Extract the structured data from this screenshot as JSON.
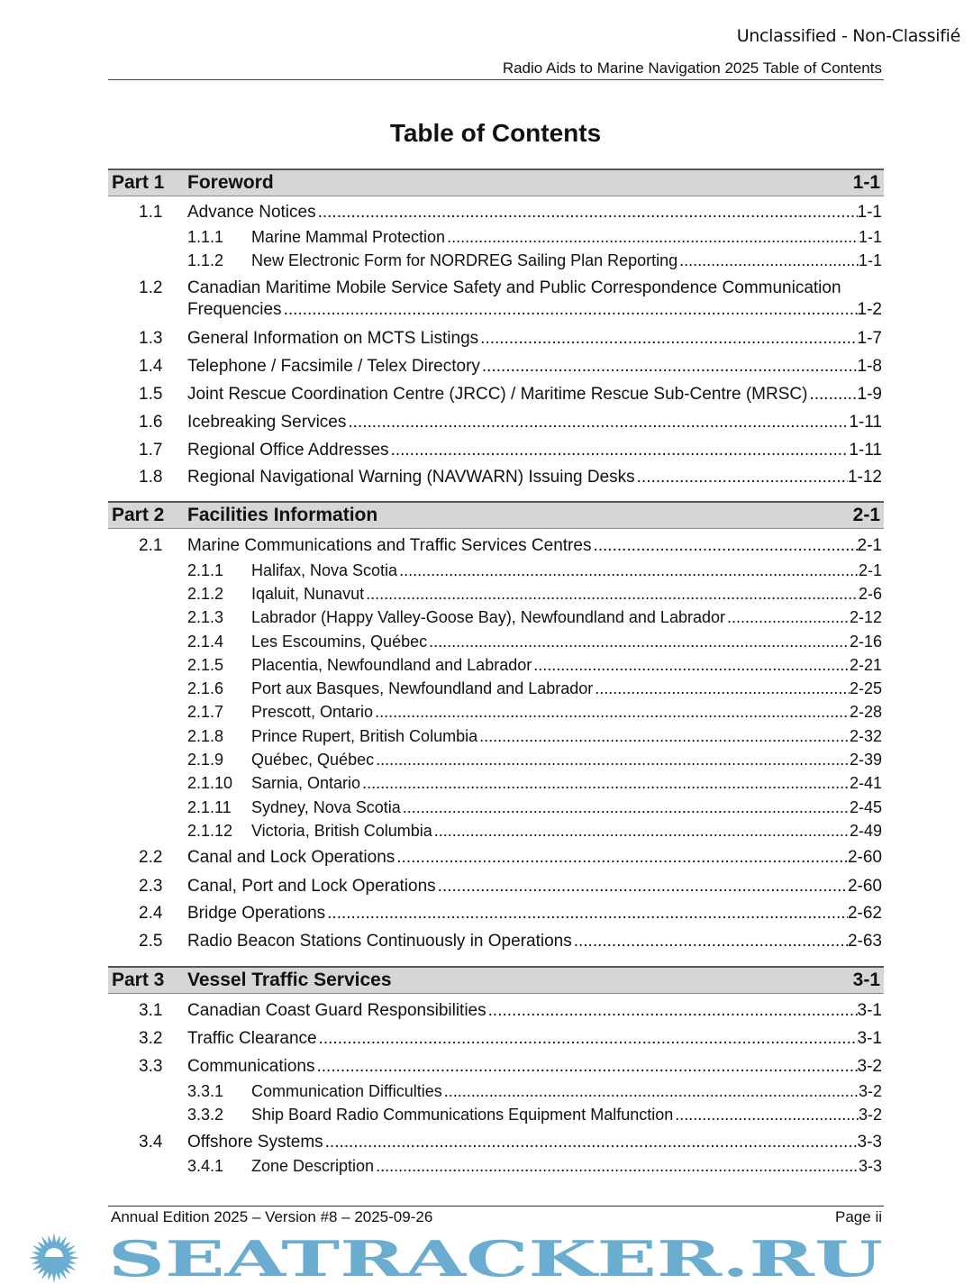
{
  "header": {
    "classification": "Unclassified - Non-Classifié",
    "running_title": "Radio Aids to Marine Navigation 2025 Table of Contents"
  },
  "title": "Table of Contents",
  "parts": [
    {
      "label": "Part 1",
      "title": "Foreword",
      "page": "1-1",
      "entries": [
        {
          "num": "1.1",
          "title": "Advance Notices",
          "page": "1-1",
          "level": 1
        },
        {
          "num": "1.1.1",
          "title": "Marine Mammal Protection",
          "page": "1-1",
          "level": 2
        },
        {
          "num": "1.1.2",
          "title": "New Electronic Form for NORDREG Sailing Plan Reporting",
          "page": "1-1",
          "level": 2
        },
        {
          "num": "1.2",
          "title": "Canadian Maritime Mobile Service Safety and Public Correspondence Communication",
          "title_cont": "Frequencies",
          "page": "1-2",
          "level": 1
        },
        {
          "num": "1.3",
          "title": "General Information on MCTS Listings",
          "page": "1-7",
          "level": 1
        },
        {
          "num": "1.4",
          "title": "Telephone / Facsimile / Telex Directory",
          "page": "1-8",
          "level": 1
        },
        {
          "num": "1.5",
          "title": "Joint Rescue Coordination Centre (JRCC) / Maritime Rescue Sub-Centre (MRSC)",
          "page": "1-9",
          "level": 1
        },
        {
          "num": "1.6",
          "title": "Icebreaking Services",
          "page": "1-11",
          "level": 1
        },
        {
          "num": "1.7",
          "title": "Regional Office Addresses",
          "page": "1-11",
          "level": 1
        },
        {
          "num": "1.8",
          "title": "Regional Navigational Warning (NAVWARN) Issuing Desks",
          "page": "1-12",
          "level": 1
        }
      ]
    },
    {
      "label": "Part 2",
      "title": "Facilities Information",
      "page": "2-1",
      "entries": [
        {
          "num": "2.1",
          "title": "Marine Communications and Traffic Services Centres",
          "page": "2-1",
          "level": 1
        },
        {
          "num": "2.1.1",
          "title": "Halifax, Nova Scotia",
          "page": "2-1",
          "level": 2
        },
        {
          "num": "2.1.2",
          "title": "Iqaluit, Nunavut",
          "page": "2-6",
          "level": 2
        },
        {
          "num": "2.1.3",
          "title": "Labrador (Happy Valley-Goose Bay), Newfoundland and Labrador",
          "page": "2-12",
          "level": 2
        },
        {
          "num": "2.1.4",
          "title": "Les Escoumins, Québec",
          "page": "2-16",
          "level": 2
        },
        {
          "num": "2.1.5",
          "title": "Placentia, Newfoundland and Labrador",
          "page": "2-21",
          "level": 2
        },
        {
          "num": "2.1.6",
          "title": "Port aux Basques, Newfoundland and Labrador",
          "page": "2-25",
          "level": 2
        },
        {
          "num": "2.1.7",
          "title": "Prescott, Ontario",
          "page": "2-28",
          "level": 2
        },
        {
          "num": "2.1.8",
          "title": "Prince Rupert, British Columbia",
          "page": "2-32",
          "level": 2
        },
        {
          "num": "2.1.9",
          "title": "Québec, Québec",
          "page": "2-39",
          "level": 2
        },
        {
          "num": "2.1.10",
          "title": "Sarnia, Ontario",
          "page": "2-41",
          "level": 2
        },
        {
          "num": "2.1.11",
          "title": "Sydney, Nova Scotia",
          "page": "2-45",
          "level": 2
        },
        {
          "num": "2.1.12",
          "title": "Victoria, British Columbia",
          "page": "2-49",
          "level": 2
        },
        {
          "num": "2.2",
          "title": "Canal and Lock Operations",
          "page": "2-60",
          "level": 1
        },
        {
          "num": "2.3",
          "title": "Canal, Port and Lock Operations",
          "page": "2-60",
          "level": 1
        },
        {
          "num": "2.4",
          "title": "Bridge Operations",
          "page": "2-62",
          "level": 1
        },
        {
          "num": "2.5",
          "title": "Radio Beacon Stations Continuously in Operations",
          "page": "2-63",
          "level": 1
        }
      ]
    },
    {
      "label": "Part 3",
      "title": "Vessel Traffic Services",
      "page": "3-1",
      "entries": [
        {
          "num": "3.1",
          "title": "Canadian Coast Guard Responsibilities",
          "page": "3-1",
          "level": 1
        },
        {
          "num": "3.2",
          "title": "Traffic Clearance",
          "page": "3-1",
          "level": 1
        },
        {
          "num": "3.3",
          "title": "Communications",
          "page": "3-2",
          "level": 1
        },
        {
          "num": "3.3.1",
          "title": "Communication Difficulties",
          "page": "3-2",
          "level": 2
        },
        {
          "num": "3.3.2",
          "title": "Ship Board Radio Communications Equipment Malfunction",
          "page": "3-2",
          "level": 2
        },
        {
          "num": "3.4",
          "title": "Offshore Systems",
          "page": "3-3",
          "level": 1
        },
        {
          "num": "3.4.1",
          "title": "Zone Description",
          "page": "3-3",
          "level": 2
        }
      ]
    }
  ],
  "footer": {
    "edition": "Annual Edition 2025 – Version #8 – 2025-09-26",
    "page": "Page ii"
  },
  "watermark": {
    "text": "SEATRACKER.RU",
    "color": "#6aadd0",
    "icon": "sun-icon"
  }
}
